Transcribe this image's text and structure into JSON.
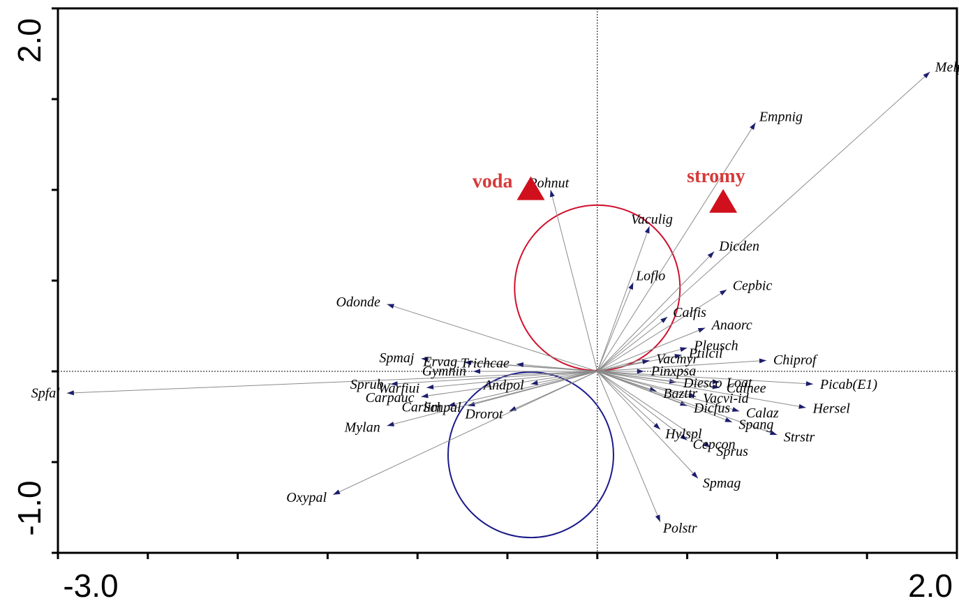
{
  "chart_data": {
    "type": "scatter",
    "subtype": "ordination-biplot",
    "xlim": [
      -3.0,
      2.0
    ],
    "ylim": [
      -1.0,
      2.0
    ],
    "x_tick_labels": [
      "-3.0",
      "2.0"
    ],
    "y_tick_labels": [
      "2.0",
      "-1.0"
    ],
    "x_minor_ticks": [
      -2.5,
      -2.0,
      -1.5,
      -1.0,
      -0.5,
      0.0,
      0.5,
      1.0,
      1.5
    ],
    "y_minor_ticks": [
      -0.5,
      0.0,
      0.5,
      1.0,
      1.5
    ],
    "zero_lines": "dotted",
    "colors": {
      "species_arrow": "#8a8a8a",
      "arrow_head": "#1d1d6e",
      "env": "#d0101c",
      "circle_voda": "#d0102c",
      "circle_stromy": "#1a1a8a"
    },
    "species": [
      {
        "label": "Melpra",
        "x": 1.85,
        "y": 1.65
      },
      {
        "label": "Empnig",
        "x": 0.88,
        "y": 1.37
      },
      {
        "label": "Pohnut",
        "x": -0.26,
        "y": 1.0
      },
      {
        "label": "Vaculig",
        "x": 0.29,
        "y": 0.8
      },
      {
        "label": "Dicden",
        "x": 0.65,
        "y": 0.66
      },
      {
        "label": "Loflo",
        "x": 0.2,
        "y": 0.49
      },
      {
        "label": "Cepbic",
        "x": 0.72,
        "y": 0.45
      },
      {
        "label": "Calfis",
        "x": 0.39,
        "y": 0.3
      },
      {
        "label": "Anaorc",
        "x": 0.6,
        "y": 0.24
      },
      {
        "label": "Pleusch",
        "x": 0.5,
        "y": 0.13
      },
      {
        "label": "Ptilcil",
        "x": 0.47,
        "y": 0.09
      },
      {
        "label": "Chiprof",
        "x": 0.94,
        "y": 0.06
      },
      {
        "label": "Vacmyr",
        "x": 0.29,
        "y": 0.06
      },
      {
        "label": "Pinxpsa",
        "x": 0.26,
        "y": 0.0
      },
      {
        "label": "Loat",
        "x": 0.68,
        "y": -0.06
      },
      {
        "label": "Picab(E1)",
        "x": 1.2,
        "y": -0.07
      },
      {
        "label": "Diesco",
        "x": 0.44,
        "y": -0.06
      },
      {
        "label": "Calnee",
        "x": 0.68,
        "y": -0.09
      },
      {
        "label": "Bazttr",
        "x": 0.33,
        "y": -0.11
      },
      {
        "label": "Vacvi-id",
        "x": 0.55,
        "y": -0.14
      },
      {
        "label": "Hersel",
        "x": 1.16,
        "y": -0.2
      },
      {
        "label": "Calaz",
        "x": 0.79,
        "y": -0.22
      },
      {
        "label": "Dicfus",
        "x": 0.5,
        "y": -0.19
      },
      {
        "label": "Spang",
        "x": 0.75,
        "y": -0.28
      },
      {
        "label": "Hylspl",
        "x": 0.35,
        "y": -0.32
      },
      {
        "label": "Strstr",
        "x": 1.0,
        "y": -0.35
      },
      {
        "label": "Cepcon",
        "x": 0.5,
        "y": -0.38
      },
      {
        "label": "Sprus",
        "x": 0.63,
        "y": -0.42
      },
      {
        "label": "Spmag",
        "x": 0.56,
        "y": -0.59
      },
      {
        "label": "Polstr",
        "x": 0.35,
        "y": -0.83
      },
      {
        "label": "Odonde",
        "x": -1.17,
        "y": 0.37
      },
      {
        "label": "Spmaj",
        "x": -0.98,
        "y": 0.07
      },
      {
        "label": "Ervag",
        "x": -0.74,
        "y": 0.05
      },
      {
        "label": "Trichcae",
        "x": -0.45,
        "y": 0.04
      },
      {
        "label": "Gymnin",
        "x": -0.69,
        "y": 0.0
      },
      {
        "label": "Sprub",
        "x": -1.15,
        "y": -0.07
      },
      {
        "label": "Warfiui",
        "x": -0.95,
        "y": -0.09
      },
      {
        "label": "Andpol",
        "x": -0.37,
        "y": -0.07
      },
      {
        "label": "Carpauc",
        "x": -0.98,
        "y": -0.14
      },
      {
        "label": "Schpal",
        "x": -0.72,
        "y": -0.19
      },
      {
        "label": "Carlim",
        "x": -0.83,
        "y": -0.19
      },
      {
        "label": "Mylan",
        "x": -1.17,
        "y": -0.3
      },
      {
        "label": "Drorot",
        "x": -0.49,
        "y": -0.22
      },
      {
        "label": "Oxypal",
        "x": -1.47,
        "y": -0.68
      },
      {
        "label": "Spfal",
        "x": -2.95,
        "y": -0.12
      }
    ],
    "environment": [
      {
        "label": "voda",
        "x": -0.37,
        "y": 0.99
      },
      {
        "label": "stromy",
        "x": 0.7,
        "y": 0.92
      }
    ],
    "circles": [
      {
        "cx": -0.0,
        "cy": 0.46,
        "r": 0.46,
        "color": "circle_voda"
      },
      {
        "cx": -0.37,
        "cy": -0.46,
        "r": 0.46,
        "color": "circle_stromy"
      }
    ]
  }
}
